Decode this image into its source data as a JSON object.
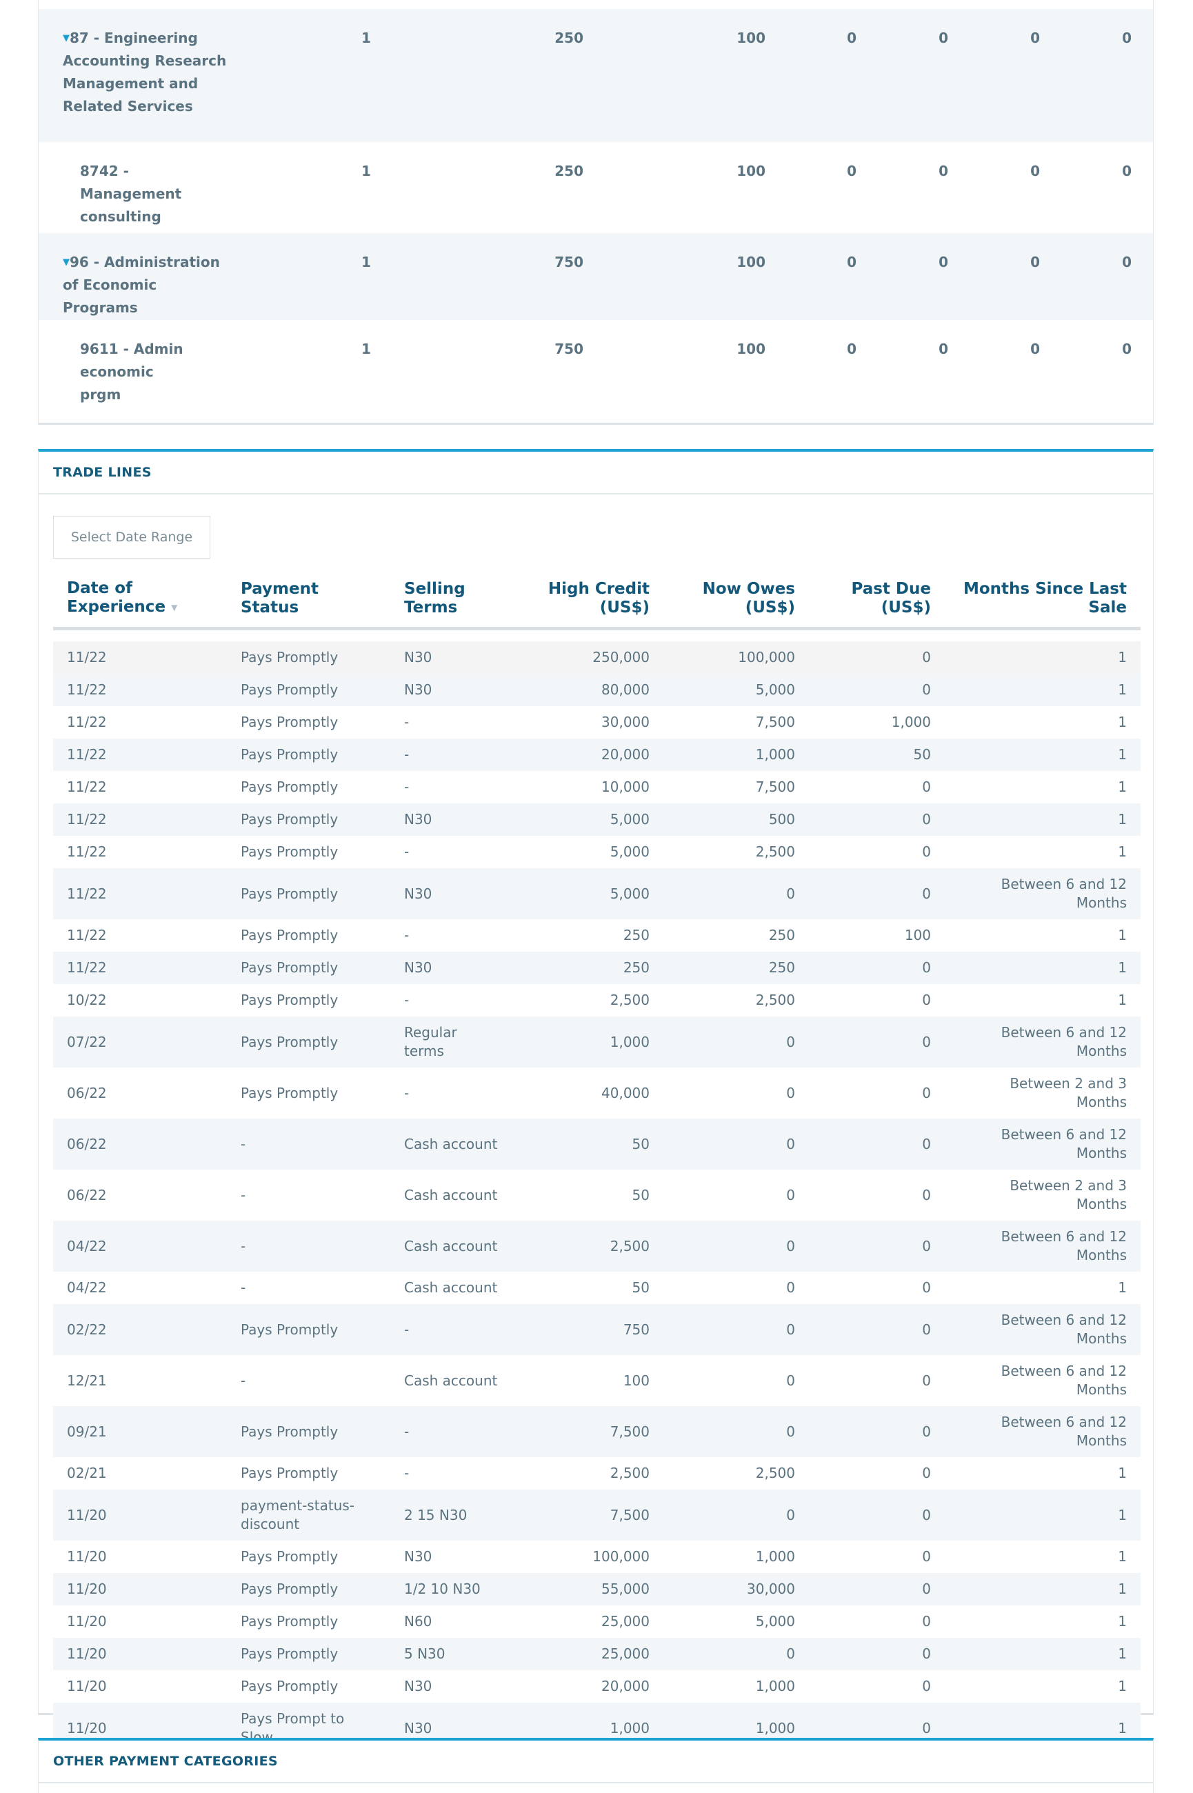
{
  "industry_table": {
    "rows": [
      {
        "name": "87 - Engineering Accounting Research Management and Related Services",
        "parent": true,
        "values": [
          "1",
          "250",
          "100",
          "0",
          "0",
          "0",
          "0"
        ]
      },
      {
        "name": "8742 - Management consulting",
        "parent": false,
        "values": [
          "1",
          "250",
          "100",
          "0",
          "0",
          "0",
          "0"
        ]
      },
      {
        "name": "96 - Administration of Economic Programs",
        "parent": true,
        "values": [
          "1",
          "750",
          "100",
          "0",
          "0",
          "0",
          "0"
        ]
      },
      {
        "name": "9611 - Admin economic prgm",
        "parent": false,
        "values": [
          "1",
          "750",
          "100",
          "0",
          "0",
          "0",
          "0"
        ]
      }
    ]
  },
  "trade_lines": {
    "title": "TRADE LINES",
    "date_range_button": "Select Date Range",
    "columns": [
      "Date of Experience",
      "Payment Status",
      "Selling Terms",
      "High Credit (US$)",
      "Now Owes (US$)",
      "Past Due (US$)",
      "Months Since Last Sale"
    ],
    "rows": [
      [
        "11/22",
        "Pays Promptly",
        "N30",
        "250,000",
        "100,000",
        "0",
        "1"
      ],
      [
        "11/22",
        "Pays Promptly",
        "N30",
        "80,000",
        "5,000",
        "0",
        "1"
      ],
      [
        "11/22",
        "Pays Promptly",
        "-",
        "30,000",
        "7,500",
        "1,000",
        "1"
      ],
      [
        "11/22",
        "Pays Promptly",
        "-",
        "20,000",
        "1,000",
        "50",
        "1"
      ],
      [
        "11/22",
        "Pays Promptly",
        "-",
        "10,000",
        "7,500",
        "0",
        "1"
      ],
      [
        "11/22",
        "Pays Promptly",
        "N30",
        "5,000",
        "500",
        "0",
        "1"
      ],
      [
        "11/22",
        "Pays Promptly",
        "-",
        "5,000",
        "2,500",
        "0",
        "1"
      ],
      [
        "11/22",
        "Pays Promptly",
        "N30",
        "5,000",
        "0",
        "0",
        "Between 6 and 12 Months"
      ],
      [
        "11/22",
        "Pays Promptly",
        "-",
        "250",
        "250",
        "100",
        "1"
      ],
      [
        "11/22",
        "Pays Promptly",
        "N30",
        "250",
        "250",
        "0",
        "1"
      ],
      [
        "10/22",
        "Pays Promptly",
        "-",
        "2,500",
        "2,500",
        "0",
        "1"
      ],
      [
        "07/22",
        "Pays Promptly",
        "Regular terms",
        "1,000",
        "0",
        "0",
        "Between 6 and 12 Months"
      ],
      [
        "06/22",
        "Pays Promptly",
        "-",
        "40,000",
        "0",
        "0",
        "Between 2 and 3 Months"
      ],
      [
        "06/22",
        "-",
        "Cash account",
        "50",
        "0",
        "0",
        "Between 6 and 12 Months"
      ],
      [
        "06/22",
        "-",
        "Cash account",
        "50",
        "0",
        "0",
        "Between 2 and 3 Months"
      ],
      [
        "04/22",
        "-",
        "Cash account",
        "2,500",
        "0",
        "0",
        "Between 6 and 12 Months"
      ],
      [
        "04/22",
        "-",
        "Cash account",
        "50",
        "0",
        "0",
        "1"
      ],
      [
        "02/22",
        "Pays Promptly",
        "-",
        "750",
        "0",
        "0",
        "Between 6 and 12 Months"
      ],
      [
        "12/21",
        "-",
        "Cash account",
        "100",
        "0",
        "0",
        "Between 6 and 12 Months"
      ],
      [
        "09/21",
        "Pays Promptly",
        "-",
        "7,500",
        "0",
        "0",
        "Between 6 and 12 Months"
      ],
      [
        "02/21",
        "Pays Promptly",
        "-",
        "2,500",
        "2,500",
        "0",
        "1"
      ],
      [
        "11/20",
        "payment-status-discount",
        "2 15 N30",
        "7,500",
        "0",
        "0",
        "1"
      ],
      [
        "11/20",
        "Pays Promptly",
        "N30",
        "100,000",
        "1,000",
        "0",
        "1"
      ],
      [
        "11/20",
        "Pays Promptly",
        "1/2 10 N30",
        "55,000",
        "30,000",
        "0",
        "1"
      ],
      [
        "11/20",
        "Pays Promptly",
        "N60",
        "25,000",
        "5,000",
        "0",
        "1"
      ],
      [
        "11/20",
        "Pays Promptly",
        "5 N30",
        "25,000",
        "0",
        "0",
        "1"
      ],
      [
        "11/20",
        "Pays Promptly",
        "N30",
        "20,000",
        "1,000",
        "0",
        "1"
      ],
      [
        "11/20",
        "Pays Prompt to Slow",
        "N30",
        "1,000",
        "1,000",
        "0",
        "1"
      ]
    ]
  },
  "other_payment_categories": {
    "title": "OTHER PAYMENT CATEGORIES"
  },
  "colors": {
    "accent": "#1ba3d3",
    "heading": "#13587a",
    "text": "#5b7380",
    "stripe": "#f2f6f9"
  }
}
